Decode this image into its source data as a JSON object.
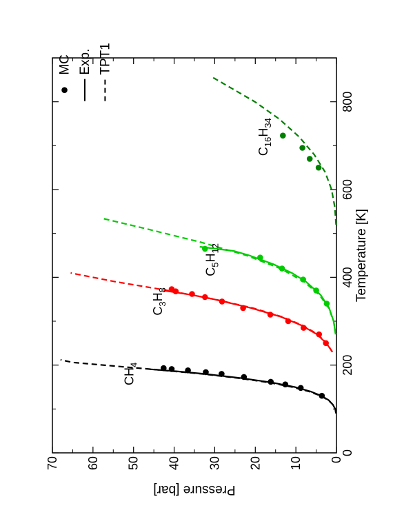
{
  "chart_data": {
    "type": "line",
    "orientation": "rotated-90-ccw",
    "xlabel": "Temperature [K]",
    "ylabel": "Pressure [bar]",
    "xlim": [
      0,
      900
    ],
    "ylim": [
      0,
      70
    ],
    "xticks": [
      0,
      200,
      400,
      600,
      800
    ],
    "yticks": [
      0,
      10,
      20,
      30,
      40,
      50,
      60,
      70
    ],
    "legend": {
      "placement": "top-right",
      "entries": [
        {
          "label": "MC",
          "style": "marker"
        },
        {
          "label": "Exp.",
          "style": "solid"
        },
        {
          "label": "TPT1",
          "style": "dashed"
        }
      ]
    },
    "series": [
      {
        "name": "CH4",
        "label": {
          "base1": "CH",
          "sub1": "4",
          "base2": "",
          "sub2": "",
          "anchor": [
            180,
            50
          ]
        },
        "color": "#000000",
        "mc": [
          [
            130,
            3.6
          ],
          [
            148,
            8.8
          ],
          [
            156,
            12.6
          ],
          [
            162,
            16.2
          ],
          [
            173,
            22.8
          ],
          [
            180,
            28.3
          ],
          [
            184,
            32.2
          ],
          [
            188,
            36.6
          ],
          [
            191,
            40.6
          ],
          [
            193,
            42.6
          ]
        ],
        "exp": [
          [
            90,
            0.1
          ],
          [
            100,
            0.3
          ],
          [
            110,
            0.9
          ],
          [
            120,
            1.9
          ],
          [
            130,
            3.7
          ],
          [
            140,
            6.4
          ],
          [
            150,
            10.3
          ],
          [
            160,
            15.8
          ],
          [
            170,
            23.1
          ],
          [
            180,
            32.6
          ],
          [
            186,
            39.5
          ],
          [
            190.6,
            46.0
          ]
        ],
        "tpt1": [
          [
            90,
            0.1
          ],
          [
            100,
            0.3
          ],
          [
            110,
            0.9
          ],
          [
            120,
            2.0
          ],
          [
            130,
            3.9
          ],
          [
            140,
            6.8
          ],
          [
            150,
            10.9
          ],
          [
            160,
            16.5
          ],
          [
            170,
            23.9
          ],
          [
            180,
            33.2
          ],
          [
            190,
            45.0
          ],
          [
            198,
            55.0
          ],
          [
            206,
            65.0
          ],
          [
            212,
            68.0
          ]
        ]
      },
      {
        "name": "C3H8",
        "label": {
          "base1": "C",
          "sub1": "3",
          "base2": "H",
          "sub2": "8",
          "anchor": [
            345,
            43
          ]
        },
        "color": "#ff0000",
        "mc": [
          [
            250,
            2.6
          ],
          [
            270,
            4.3
          ],
          [
            285,
            8.1
          ],
          [
            300,
            11.9
          ],
          [
            315,
            16.3
          ],
          [
            330,
            23.0
          ],
          [
            345,
            28.2
          ],
          [
            355,
            32.4
          ],
          [
            362,
            35.6
          ],
          [
            368,
            39.6
          ],
          [
            373,
            40.6
          ]
        ],
        "exp": [
          [
            230,
            1.0
          ],
          [
            250,
            2.5
          ],
          [
            270,
            4.8
          ],
          [
            290,
            8.5
          ],
          [
            310,
            13.7
          ],
          [
            330,
            21.0
          ],
          [
            350,
            30.2
          ],
          [
            360,
            35.7
          ],
          [
            369.8,
            42.5
          ]
        ],
        "tpt1": [
          [
            230,
            1.0
          ],
          [
            250,
            2.4
          ],
          [
            270,
            4.6
          ],
          [
            290,
            8.2
          ],
          [
            310,
            13.4
          ],
          [
            330,
            20.6
          ],
          [
            350,
            30.0
          ],
          [
            370,
            41.6
          ],
          [
            390,
            54.5
          ],
          [
            410,
            65.5
          ]
        ]
      },
      {
        "name": "C5H12",
        "label": {
          "base1": "C",
          "sub1": "5",
          "base2": "H",
          "sub2": "12",
          "anchor": [
            440,
            30
          ]
        },
        "color": "#00cc00",
        "mc": [
          [
            340,
            2.4
          ],
          [
            370,
            5.0
          ],
          [
            395,
            8.2
          ],
          [
            420,
            13.4
          ],
          [
            445,
            18.8
          ],
          [
            465,
            32.4
          ]
        ],
        "exp": [
          [
            270,
            0.2
          ],
          [
            300,
            0.7
          ],
          [
            330,
            1.8
          ],
          [
            360,
            3.9
          ],
          [
            390,
            7.5
          ],
          [
            410,
            11.0
          ],
          [
            430,
            15.6
          ],
          [
            450,
            21.5
          ],
          [
            460,
            25.3
          ],
          [
            469.7,
            33.7
          ]
        ],
        "tpt1": [
          [
            270,
            0.2
          ],
          [
            300,
            0.7
          ],
          [
            330,
            1.9
          ],
          [
            360,
            4.2
          ],
          [
            390,
            8.0
          ],
          [
            420,
            13.8
          ],
          [
            450,
            22.2
          ],
          [
            480,
            33.4
          ],
          [
            510,
            46.6
          ],
          [
            535,
            58.0
          ]
        ]
      },
      {
        "name": "C16H34",
        "label": {
          "base1": "C",
          "sub1": "16",
          "base2": "H",
          "sub2": "34",
          "anchor": [
            720,
            17
          ]
        },
        "color": "#008000",
        "mc": [
          [
            650,
            4.4
          ],
          [
            670,
            6.6
          ],
          [
            695,
            8.4
          ],
          [
            723,
            13.2
          ]
        ],
        "exp": [],
        "tpt1": [
          [
            520,
            0.1
          ],
          [
            560,
            0.4
          ],
          [
            600,
            1.2
          ],
          [
            640,
            2.8
          ],
          [
            680,
            5.5
          ],
          [
            720,
            9.2
          ],
          [
            760,
            14.0
          ],
          [
            800,
            20.1
          ],
          [
            830,
            25.7
          ],
          [
            855,
            30.4
          ]
        ]
      }
    ]
  }
}
